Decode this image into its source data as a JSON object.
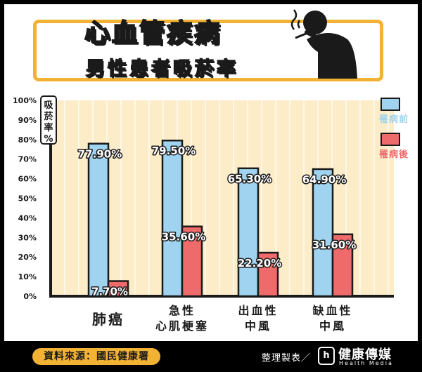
{
  "header": {
    "title": "心血管疾病",
    "subtitle": "男性患者吸菸率"
  },
  "footer": {
    "source": "資料來源：國民健康署",
    "maker": "整理製表／",
    "brand_mark": "h",
    "brand_name": "健康傳媒",
    "brand_sub": "Health Media"
  },
  "colors": {
    "before": "#9fd3ef",
    "after": "#ef6b6b",
    "plot_bg": "#fcecc8",
    "accent": "#f2b234"
  },
  "chart_data": {
    "type": "bar",
    "ylabel": "吸菸率%",
    "ylim": [
      0,
      100
    ],
    "yticks": [
      "0%",
      "10%",
      "20%",
      "30%",
      "40%",
      "50%",
      "60%",
      "70%",
      "80%",
      "90%",
      "100%"
    ],
    "categories": [
      [
        "肺癌"
      ],
      [
        "急性",
        "心肌梗塞"
      ],
      [
        "出血性",
        "中風"
      ],
      [
        "缺血性",
        "中風"
      ]
    ],
    "legend_position": "right",
    "series": [
      {
        "name": "罹病前",
        "values": [
          77.9,
          79.5,
          65.3,
          64.9
        ],
        "labels": [
          "77.90%",
          "79.50%",
          "65.30%",
          "64.90%"
        ]
      },
      {
        "name": "罹病後",
        "values": [
          7.7,
          35.6,
          22.2,
          31.6
        ],
        "labels": [
          "7.70%",
          "35.60%",
          "22.20%",
          "31.60%"
        ]
      }
    ]
  }
}
